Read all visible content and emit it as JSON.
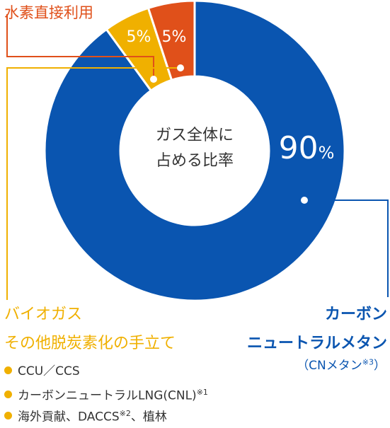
{
  "chart_data": {
    "type": "pie",
    "donut": true,
    "title": "",
    "center_label": [
      "ガス全体に",
      "占める比率"
    ],
    "slices": [
      {
        "name": "カーボンニュートラルメタン",
        "value": 90,
        "label": "90",
        "unit": "%",
        "color": "#0a55b0"
      },
      {
        "name": "バイオガス その他脱炭素化の手立て",
        "value": 5,
        "label": "5%",
        "color": "#f0b000"
      },
      {
        "name": "水素直接利用",
        "value": 5,
        "label": "5%",
        "color": "#e0501a"
      }
    ]
  },
  "labels": {
    "hydrogen": "水素直接利用",
    "bio_line1": "バイオガス",
    "bio_line2": "その他脱炭素化の手立て",
    "cn_line1": "カーボン",
    "cn_line2": "ニュートラルメタン",
    "cn_note": "（CNメタン",
    "cn_note_sup": "※3",
    "cn_note_end": "）"
  },
  "bullets": [
    {
      "text": "CCU／CCS",
      "sup": ""
    },
    {
      "text": "カーボンニュートラルLNG(CNL)",
      "sup": "※1"
    },
    {
      "text": "海外貢献、DACCS",
      "sup": "※2",
      "tail": "、植林"
    }
  ],
  "colors": {
    "blue": "#0a55b0",
    "yellow": "#f0b000",
    "red": "#e0501a",
    "white": "#ffffff"
  }
}
